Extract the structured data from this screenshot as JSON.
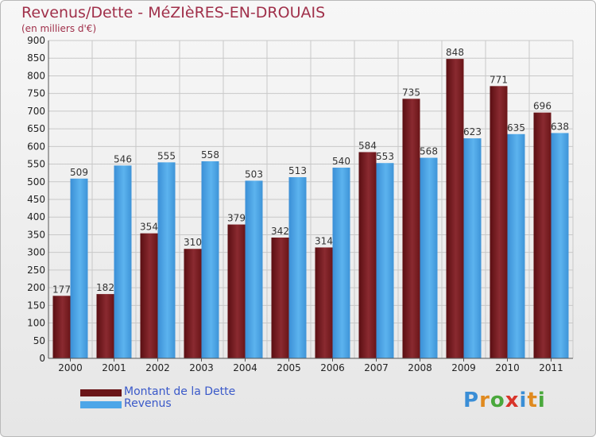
{
  "title": "Revenus/Dette - MéZIèRES-EN-DROUAIS",
  "subtitle": "(en milliers d'€)",
  "logo_text": "Proxiti",
  "colors": {
    "debt": "#7a1f24",
    "revenue": "#4da6e8",
    "title": "#a0304a",
    "grid": "#c8c8c8",
    "legend_text": "#3a59c9"
  },
  "chart_data": {
    "type": "bar",
    "categories": [
      "2000",
      "2001",
      "2002",
      "2003",
      "2004",
      "2005",
      "2006",
      "2007",
      "2008",
      "2009",
      "2010",
      "2011"
    ],
    "series": [
      {
        "name": "Montant de la Dette",
        "values": [
          177,
          182,
          354,
          310,
          379,
          342,
          314,
          584,
          735,
          848,
          771,
          696
        ]
      },
      {
        "name": "Revenus",
        "values": [
          509,
          546,
          555,
          558,
          503,
          513,
          540,
          553,
          568,
          623,
          635,
          638
        ]
      }
    ],
    "ylim": [
      0,
      900
    ],
    "ytick_step": 50,
    "grid": true,
    "legend_position": "bottom-left"
  }
}
